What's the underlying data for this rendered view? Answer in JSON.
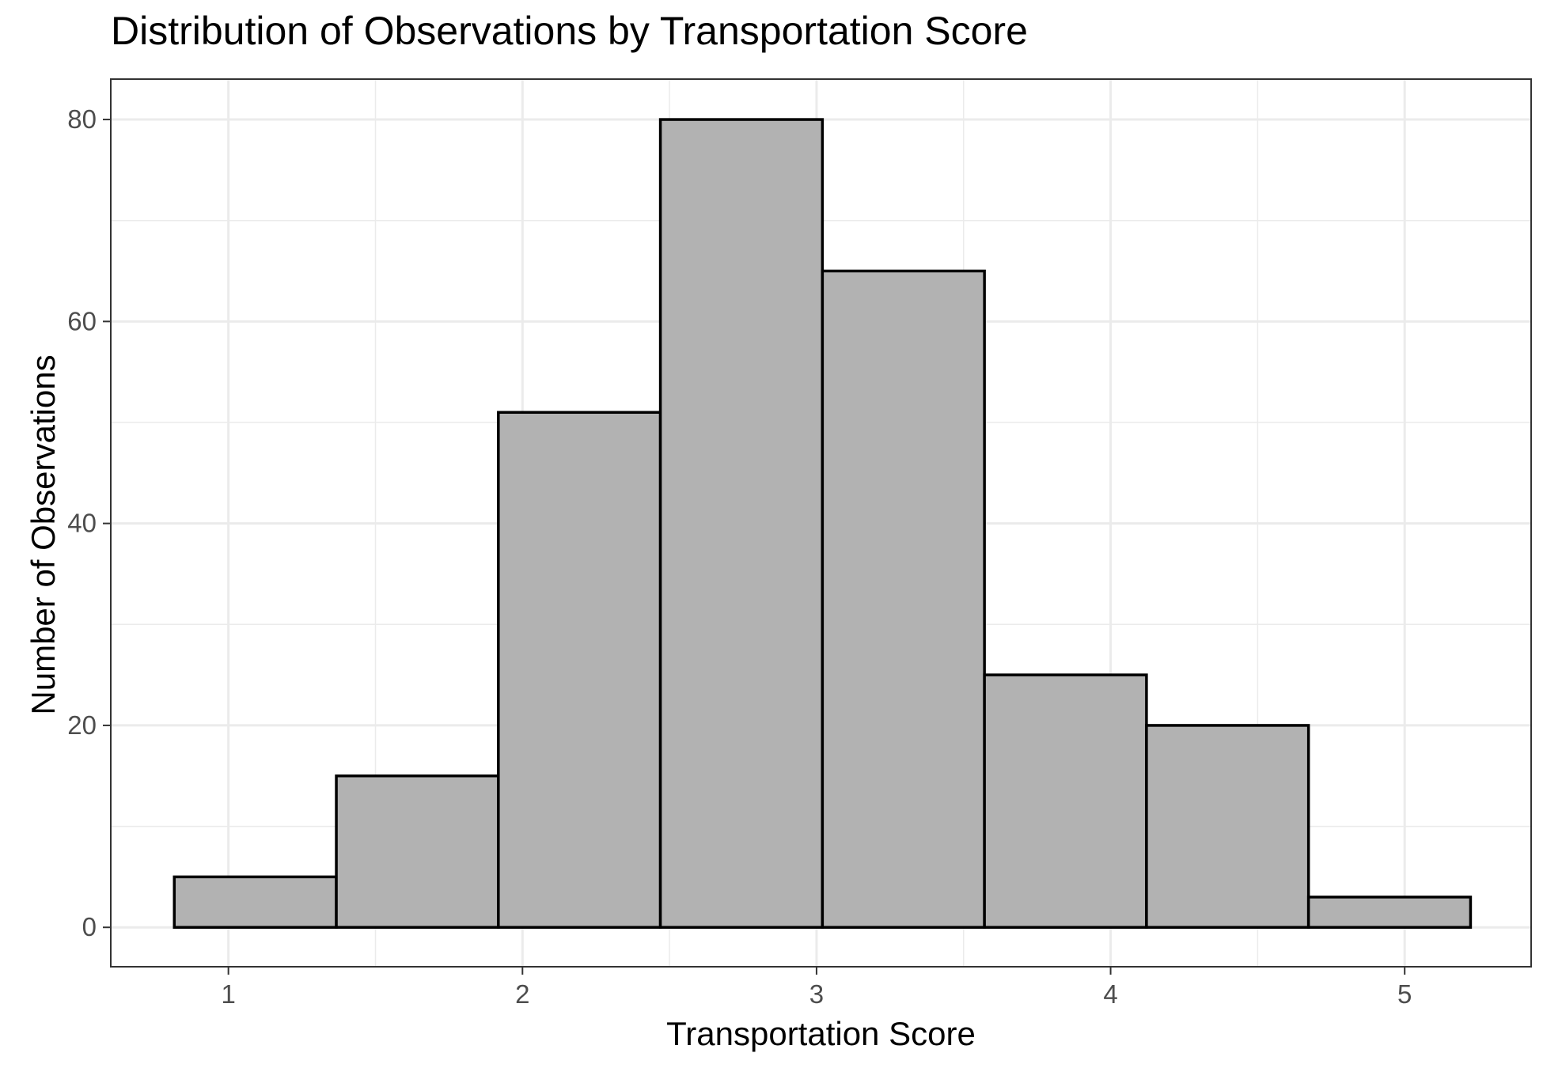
{
  "chart_data": {
    "type": "bar",
    "title": "Distribution of Observations by Transportation Score",
    "xlabel": "Transportation Score",
    "ylabel": "Number of Observations",
    "bins": [
      {
        "x0": 0.816,
        "x1": 1.367,
        "count": 5
      },
      {
        "x0": 1.367,
        "x1": 1.918,
        "count": 15
      },
      {
        "x0": 1.918,
        "x1": 2.469,
        "count": 51
      },
      {
        "x0": 2.469,
        "x1": 3.02,
        "count": 80
      },
      {
        "x0": 3.02,
        "x1": 3.571,
        "count": 65
      },
      {
        "x0": 3.571,
        "x1": 4.122,
        "count": 25
      },
      {
        "x0": 4.122,
        "x1": 4.673,
        "count": 20
      },
      {
        "x0": 4.673,
        "x1": 5.224,
        "count": 3
      }
    ],
    "xlim": [
      0.6,
      5.43
    ],
    "ylim": [
      -3.9,
      84
    ],
    "x_ticks": [
      1,
      2,
      3,
      4,
      5
    ],
    "x_tick_labels": [
      "1",
      "2",
      "3",
      "4",
      "5"
    ],
    "y_ticks": [
      0,
      20,
      40,
      60,
      80
    ],
    "y_tick_labels": [
      "0",
      "20",
      "40",
      "60",
      "80"
    ],
    "grid": true,
    "colors": {
      "bar_fill": "#b2b2b2",
      "bar_stroke": "#000000",
      "grid_major": "#ebebeb",
      "grid_minor": "#ebebeb",
      "panel_border": "#333333",
      "tick_text": "#4d4d4d"
    }
  }
}
